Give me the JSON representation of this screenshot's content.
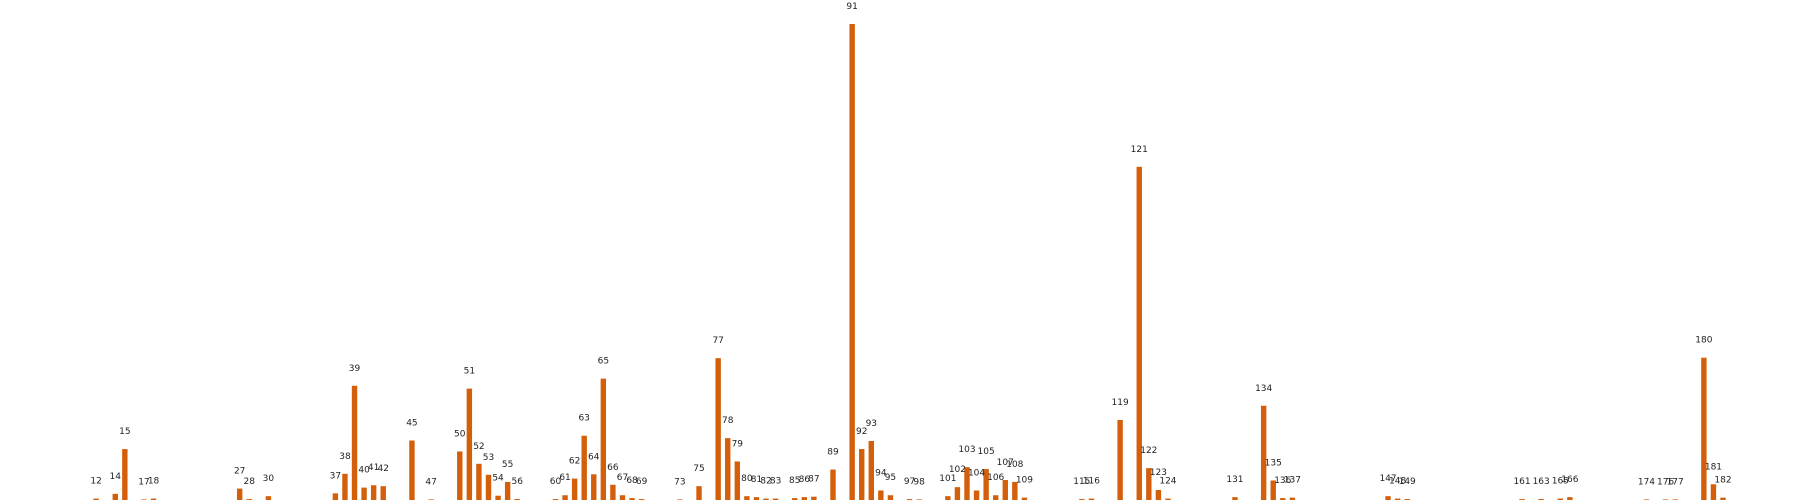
{
  "chart_data": {
    "type": "bar",
    "bar_color": "#d35f0a",
    "label_color": "#222222",
    "background": "#ffffff",
    "xlim": [
      3,
      189
    ],
    "ylim": [
      0,
      100
    ],
    "grid": false,
    "axes_visible": false,
    "x": [
      12,
      14,
      15,
      17,
      18,
      27,
      28,
      30,
      37,
      38,
      39,
      40,
      41,
      42,
      45,
      47,
      50,
      51,
      52,
      53,
      54,
      55,
      56,
      60,
      61,
      62,
      63,
      64,
      65,
      66,
      67,
      68,
      69,
      73,
      75,
      77,
      78,
      79,
      80,
      81,
      82,
      83,
      85,
      86,
      87,
      89,
      91,
      92,
      93,
      94,
      95,
      97,
      98,
      101,
      102,
      103,
      104,
      105,
      106,
      107,
      108,
      109,
      115,
      116,
      119,
      121,
      122,
      123,
      124,
      131,
      134,
      135,
      136,
      137,
      147,
      148,
      149,
      161,
      163,
      165,
      166,
      174,
      176,
      177,
      180,
      181,
      182
    ],
    "labels": [
      "12",
      "14",
      "15",
      "17",
      "18",
      "27",
      "28",
      "30",
      "37",
      "38",
      "39",
      "40",
      "41",
      "42",
      "45",
      "47",
      "50",
      "51",
      "52",
      "53",
      "54",
      "55",
      "56",
      "60",
      "61",
      "62",
      "63",
      "64",
      "65",
      "66",
      "67",
      "68",
      "69",
      "73",
      "75",
      "77",
      "78",
      "79",
      "80",
      "81",
      "82",
      "83",
      "85",
      "86",
      "87",
      "89",
      "91",
      "92",
      "93",
      "94",
      "95",
      "97",
      "98",
      "101",
      "102",
      "103",
      "104",
      "105",
      "106",
      "107",
      "108",
      "109",
      "115",
      "116",
      "119",
      "121",
      "122",
      "123",
      "124",
      "131",
      "134",
      "135",
      "136",
      "137",
      "147",
      "148",
      "149",
      "161",
      "163",
      "165",
      "166",
      "174",
      "176",
      "177",
      "180",
      "181",
      "182"
    ],
    "values": [
      0.3,
      1.3,
      10.7,
      0.1,
      0.3,
      2.4,
      0.2,
      0.8,
      1.4,
      5.5,
      24.0,
      2.6,
      3.1,
      2.9,
      12.5,
      0.1,
      10.2,
      23.4,
      7.6,
      5.3,
      0.9,
      3.8,
      0.2,
      0.2,
      1.0,
      4.5,
      13.5,
      5.4,
      25.5,
      3.2,
      1.0,
      0.4,
      0.2,
      0.1,
      2.9,
      29.8,
      13.0,
      8.1,
      0.8,
      0.6,
      0.3,
      0.3,
      0.4,
      0.6,
      0.7,
      6.4,
      100.0,
      10.7,
      12.4,
      2.0,
      1.0,
      0.2,
      0.1,
      0.8,
      2.7,
      6.9,
      2.0,
      6.5,
      1.0,
      4.2,
      3.8,
      0.5,
      0.2,
      0.3,
      16.8,
      70.0,
      6.7,
      2.1,
      0.3,
      0.6,
      19.8,
      4.1,
      0.4,
      0.5,
      0.8,
      0.3,
      0.2,
      0.2,
      0.2,
      0.3,
      0.6,
      0.1,
      0.1,
      0.1,
      29.9,
      3.3,
      0.5
    ]
  }
}
